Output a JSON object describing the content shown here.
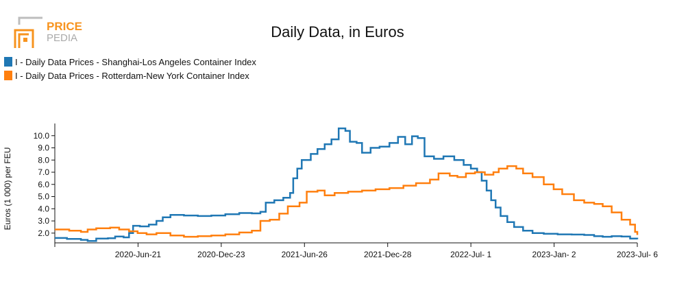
{
  "logo": {
    "word_top": "PRICE",
    "word_bottom": "PEDIA"
  },
  "chart_data": {
    "type": "line",
    "title": "Daily Data, in Euros",
    "ylabel": "Euros (1 000) per FEU",
    "xlabel": "",
    "x_tick_labels": [
      "2020-Jun-21",
      "2020-Dec-23",
      "2021-Jun-26",
      "2021-Dec-28",
      "2022-Jul- 1",
      "2023-Jan- 2",
      "2023-Jul- 6"
    ],
    "y_ticks": [
      2.0,
      3.0,
      4.0,
      5.0,
      6.0,
      7.0,
      8.0,
      9.0,
      10.0
    ],
    "y_tick_labels": [
      "2.0",
      "3.0",
      "4.0",
      "5.0",
      "6.0",
      "7.0",
      "8.0",
      "9.0",
      "10.0"
    ],
    "ylim": [
      1.2,
      11.0
    ],
    "x_start": "2019-12-19",
    "x_end": "2023-07-06",
    "legend_position": "top-left",
    "grid": false,
    "series": [
      {
        "name": "I - Daily Data Prices - Shanghai-Los Angeles Container Index",
        "color": "#1f77b4",
        "points": [
          [
            "2019-12-19",
            1.6
          ],
          [
            "2020-01-15",
            1.52
          ],
          [
            "2020-02-15",
            1.45
          ],
          [
            "2020-03-01",
            1.35
          ],
          [
            "2020-03-20",
            1.55
          ],
          [
            "2020-04-15",
            1.58
          ],
          [
            "2020-05-01",
            1.72
          ],
          [
            "2020-05-20",
            1.65
          ],
          [
            "2020-06-01",
            2.0
          ],
          [
            "2020-06-10",
            2.6
          ],
          [
            "2020-06-25",
            2.55
          ],
          [
            "2020-07-15",
            2.7
          ],
          [
            "2020-08-01",
            3.0
          ],
          [
            "2020-08-15",
            3.3
          ],
          [
            "2020-09-01",
            3.5
          ],
          [
            "2020-10-01",
            3.45
          ],
          [
            "2020-11-01",
            3.4
          ],
          [
            "2020-12-01",
            3.45
          ],
          [
            "2021-01-01",
            3.55
          ],
          [
            "2021-02-01",
            3.65
          ],
          [
            "2021-03-01",
            3.62
          ],
          [
            "2021-03-20",
            3.75
          ],
          [
            "2021-04-01",
            4.5
          ],
          [
            "2021-04-20",
            4.7
          ],
          [
            "2021-05-10",
            4.9
          ],
          [
            "2021-05-25",
            5.3
          ],
          [
            "2021-06-01",
            6.5
          ],
          [
            "2021-06-10",
            7.3
          ],
          [
            "2021-06-20",
            8.0
          ],
          [
            "2021-07-10",
            8.5
          ],
          [
            "2021-07-25",
            8.9
          ],
          [
            "2021-08-10",
            9.3
          ],
          [
            "2021-08-25",
            9.7
          ],
          [
            "2021-09-10",
            10.6
          ],
          [
            "2021-09-25",
            10.4
          ],
          [
            "2021-10-05",
            9.5
          ],
          [
            "2021-10-20",
            9.4
          ],
          [
            "2021-11-01",
            8.6
          ],
          [
            "2021-11-20",
            9.0
          ],
          [
            "2021-12-10",
            9.1
          ],
          [
            "2022-01-01",
            9.4
          ],
          [
            "2022-01-20",
            9.9
          ],
          [
            "2022-02-05",
            9.3
          ],
          [
            "2022-02-20",
            9.95
          ],
          [
            "2022-03-05",
            9.8
          ],
          [
            "2022-03-20",
            8.3
          ],
          [
            "2022-04-10",
            8.1
          ],
          [
            "2022-05-01",
            8.3
          ],
          [
            "2022-05-25",
            8.0
          ],
          [
            "2022-06-15",
            7.6
          ],
          [
            "2022-07-01",
            7.3
          ],
          [
            "2022-07-15",
            7.0
          ],
          [
            "2022-07-25",
            6.3
          ],
          [
            "2022-08-05",
            5.5
          ],
          [
            "2022-08-15",
            4.7
          ],
          [
            "2022-08-25",
            4.1
          ],
          [
            "2022-09-05",
            3.4
          ],
          [
            "2022-09-20",
            2.9
          ],
          [
            "2022-10-05",
            2.5
          ],
          [
            "2022-10-25",
            2.2
          ],
          [
            "2022-11-15",
            2.0
          ],
          [
            "2022-12-10",
            1.95
          ],
          [
            "2023-01-10",
            1.9
          ],
          [
            "2023-02-10",
            1.88
          ],
          [
            "2023-03-10",
            1.85
          ],
          [
            "2023-04-01",
            1.75
          ],
          [
            "2023-04-20",
            1.7
          ],
          [
            "2023-05-10",
            1.75
          ],
          [
            "2023-06-01",
            1.72
          ],
          [
            "2023-06-20",
            1.55
          ],
          [
            "2023-07-06",
            1.5
          ]
        ]
      },
      {
        "name": "I - Daily Data Prices - Rotterdam-New York Container Index",
        "color": "#ff7f0e",
        "points": [
          [
            "2019-12-19",
            2.3
          ],
          [
            "2020-01-20",
            2.2
          ],
          [
            "2020-02-15",
            2.1
          ],
          [
            "2020-03-01",
            2.3
          ],
          [
            "2020-03-20",
            2.4
          ],
          [
            "2020-04-20",
            2.45
          ],
          [
            "2020-05-10",
            2.3
          ],
          [
            "2020-06-01",
            2.15
          ],
          [
            "2020-06-20",
            2.0
          ],
          [
            "2020-07-10",
            1.9
          ],
          [
            "2020-08-01",
            2.0
          ],
          [
            "2020-09-01",
            1.8
          ],
          [
            "2020-10-01",
            1.7
          ],
          [
            "2020-11-01",
            1.75
          ],
          [
            "2020-12-01",
            1.8
          ],
          [
            "2021-01-01",
            1.9
          ],
          [
            "2021-02-01",
            2.05
          ],
          [
            "2021-03-01",
            2.2
          ],
          [
            "2021-03-20",
            3.0
          ],
          [
            "2021-04-10",
            3.1
          ],
          [
            "2021-05-01",
            3.6
          ],
          [
            "2021-05-20",
            4.2
          ],
          [
            "2021-06-15",
            4.5
          ],
          [
            "2021-07-01",
            5.4
          ],
          [
            "2021-07-25",
            5.5
          ],
          [
            "2021-08-10",
            5.1
          ],
          [
            "2021-09-01",
            5.3
          ],
          [
            "2021-10-01",
            5.4
          ],
          [
            "2021-11-01",
            5.5
          ],
          [
            "2021-12-01",
            5.6
          ],
          [
            "2022-01-01",
            5.7
          ],
          [
            "2022-02-01",
            5.9
          ],
          [
            "2022-03-01",
            6.1
          ],
          [
            "2022-04-01",
            6.4
          ],
          [
            "2022-04-20",
            6.9
          ],
          [
            "2022-05-15",
            6.7
          ],
          [
            "2022-06-01",
            6.6
          ],
          [
            "2022-06-20",
            6.9
          ],
          [
            "2022-07-10",
            7.0
          ],
          [
            "2022-08-01",
            6.8
          ],
          [
            "2022-08-20",
            7.0
          ],
          [
            "2022-09-01",
            7.3
          ],
          [
            "2022-09-20",
            7.5
          ],
          [
            "2022-10-10",
            7.3
          ],
          [
            "2022-10-25",
            6.9
          ],
          [
            "2022-11-15",
            6.6
          ],
          [
            "2022-12-10",
            6.0
          ],
          [
            "2023-01-01",
            5.6
          ],
          [
            "2023-01-20",
            5.2
          ],
          [
            "2023-02-15",
            4.7
          ],
          [
            "2023-03-10",
            4.5
          ],
          [
            "2023-04-01",
            4.4
          ],
          [
            "2023-04-20",
            4.2
          ],
          [
            "2023-05-10",
            3.7
          ],
          [
            "2023-06-01",
            3.1
          ],
          [
            "2023-06-20",
            2.7
          ],
          [
            "2023-07-01",
            2.1
          ],
          [
            "2023-07-06",
            1.85
          ]
        ]
      }
    ]
  }
}
